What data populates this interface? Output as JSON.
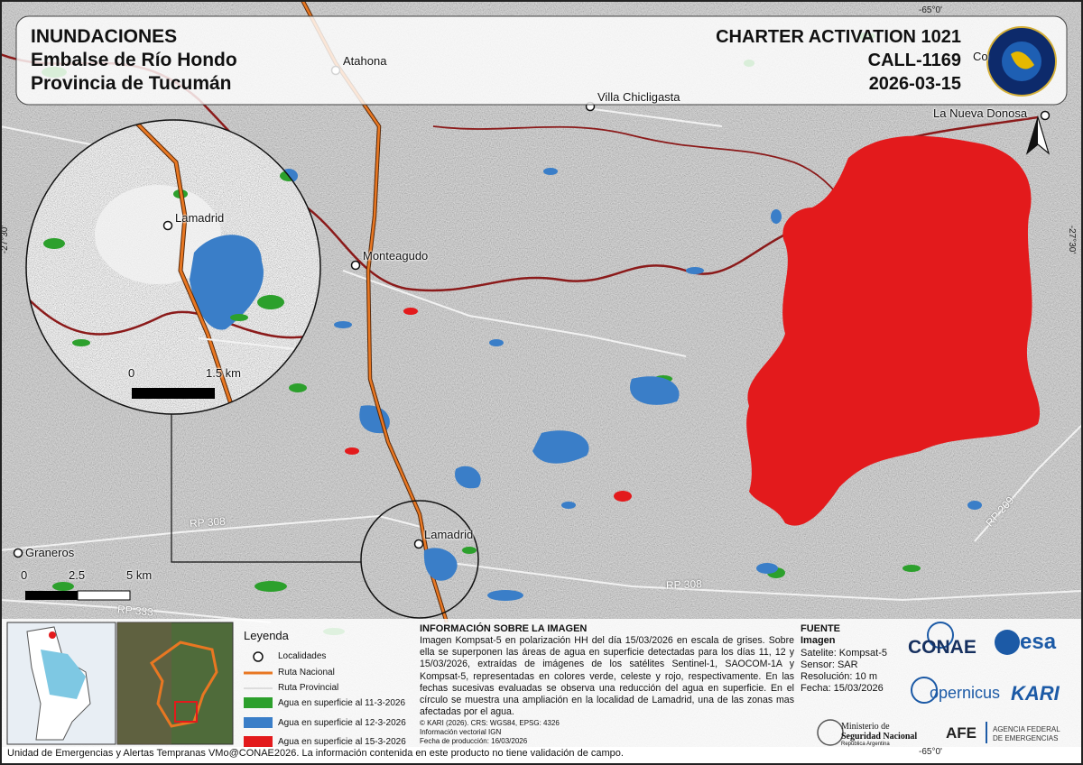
{
  "header": {
    "title": "INUNDACIONES",
    "subtitle_1": "Embalse de Río Hondo",
    "subtitle_2": "Provincia de Tucumán",
    "activation": "CHARTER ACTIVATION 1021",
    "call": "CALL-1169",
    "date": "2026-03-15"
  },
  "places": [
    "Atahona",
    "Villa Chicligasta",
    "La Nueva Donosa",
    "Monteagudo",
    "Lamadrid",
    "Graneros",
    "Co"
  ],
  "inset_place": "Lamadrid",
  "roads": [
    "RP 308",
    "RP 308",
    "RP 333",
    "RP 209"
  ],
  "coordinates": [
    "-65°0'",
    "-65°0'",
    "-27°30'",
    "-27°30'"
  ],
  "scale": {
    "labels": [
      "0",
      "2.5",
      "5 km"
    ]
  },
  "inset_scale": {
    "labels": [
      "0",
      "1.5 km"
    ]
  },
  "legend": {
    "title": "Leyenda",
    "items": [
      "Localidades",
      "Ruta Nacional",
      "Ruta Provincial",
      "Agua en superficie al 11-3-2026",
      "Agua en superficie al 12-3-2026",
      "Agua en superficie al 15-3-2026"
    ]
  },
  "image_info": {
    "title": "INFORMACIÓN SOBRE LA IMAGEN",
    "text": "Imagen Kompsat-5 en polarización HH del día 15/03/2026 en escala de grises. Sobre ella se superponen las áreas de agua en superficie detectadas para los días 11, 12 y 15/03/2026, extraídas de imágenes de los satélites Sentinel-1, SAOCOM-1A y Kompsat-5, representadas en colores verde, celeste y rojo, respectivamente. En las fechas sucesivas evaluadas se observa una reducción del agua en superficie. En el círculo se muestra una ampliación en la localidad de Lamadrid, una de las zonas mas afectadas por el agua.",
    "credits": [
      "© KARI (2026). CRS: WGS84, EPSG: 4326",
      "Información vectorial IGN",
      "Fecha de producción: 16/03/2026"
    ]
  },
  "source": {
    "title": "FUENTE",
    "subtitle": "Imagen",
    "lines": [
      "Satelite: Kompsat-5",
      "Sensor: SAR",
      "Resolución: 10 m",
      "Fecha: 15/03/2026"
    ]
  },
  "logos": [
    "CONAE",
    "esa",
    "opernicus",
    "KARI",
    "Ministerio de",
    "Seguridad Nacional",
    "República Argentina",
    "AFE",
    "AGENCIA FEDERAL",
    "DE EMERGENCIAS"
  ],
  "footer": "Unidad de Emergencias y Alertas Tempranas VMo@CONAE2026. La información contenida en este producto no tiene validación de campo."
}
